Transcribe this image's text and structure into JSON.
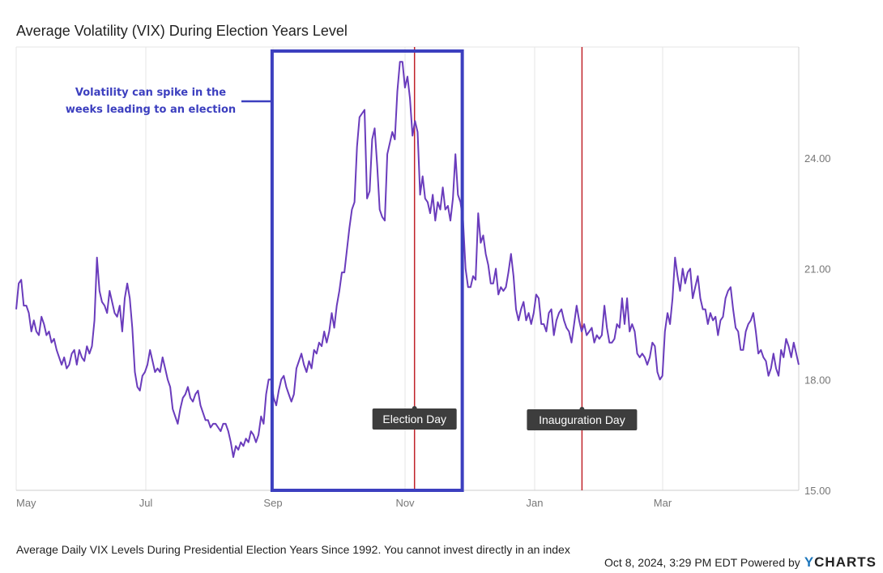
{
  "chart_data": {
    "type": "line",
    "title": "Average Volatility (VIX) During Election Years Level",
    "xlabel": "",
    "ylabel": "",
    "x_ticks": [
      "May",
      "Jul",
      "Sep",
      "Nov",
      "Jan",
      "Mar"
    ],
    "y_ticks": [
      "15.00",
      "18.00",
      "21.00",
      "24.00"
    ],
    "ylim": [
      15,
      27
    ],
    "grid": "vertical",
    "series": [
      {
        "color": "#6a3cbc",
        "values": [
          19.9,
          20.6,
          20.7,
          20.0,
          20.0,
          19.8,
          19.3,
          19.6,
          19.3,
          19.2,
          19.7,
          19.5,
          19.2,
          19.3,
          19.0,
          19.1,
          18.8,
          18.6,
          18.4,
          18.6,
          18.3,
          18.4,
          18.7,
          18.8,
          18.4,
          18.8,
          18.6,
          18.5,
          18.9,
          18.7,
          18.9,
          19.6,
          21.3,
          20.4,
          20.1,
          20.0,
          19.8,
          20.4,
          20.1,
          19.8,
          19.7,
          20.0,
          19.3,
          20.2,
          20.6,
          20.2,
          19.4,
          18.2,
          17.8,
          17.7,
          18.1,
          18.2,
          18.4,
          18.8,
          18.5,
          18.2,
          18.3,
          18.2,
          18.6,
          18.3,
          18.0,
          17.8,
          17.2,
          17.0,
          16.8,
          17.2,
          17.5,
          17.6,
          17.8,
          17.5,
          17.4,
          17.6,
          17.7,
          17.3,
          17.1,
          16.9,
          16.9,
          16.7,
          16.8,
          16.8,
          16.7,
          16.6,
          16.8,
          16.8,
          16.6,
          16.3,
          15.9,
          16.2,
          16.1,
          16.3,
          16.2,
          16.4,
          16.3,
          16.6,
          16.5,
          16.3,
          16.5,
          17.0,
          16.8,
          17.6,
          18.0,
          18.0,
          17.5,
          17.3,
          17.7,
          18.0,
          18.1,
          17.8,
          17.6,
          17.4,
          17.6,
          18.3,
          18.5,
          18.7,
          18.4,
          18.2,
          18.5,
          18.3,
          18.8,
          18.7,
          19.0,
          18.9,
          19.3,
          19.0,
          19.3,
          19.8,
          19.4,
          20.0,
          20.4,
          20.9,
          20.9,
          21.5,
          22.1,
          22.6,
          22.8,
          24.3,
          25.1,
          25.2,
          25.3,
          22.9,
          23.1,
          24.5,
          24.8,
          23.8,
          22.6,
          22.4,
          22.3,
          24.1,
          24.4,
          24.7,
          24.5,
          25.8,
          26.6,
          26.6,
          25.9,
          26.2,
          25.6,
          24.6,
          25.0,
          24.7,
          23.0,
          23.5,
          22.9,
          22.8,
          22.5,
          23.0,
          22.3,
          22.8,
          22.6,
          23.2,
          22.6,
          22.7,
          22.3,
          22.9,
          24.1,
          23.0,
          22.8,
          22.3,
          21.0,
          20.5,
          20.5,
          20.8,
          20.7,
          22.5,
          21.7,
          21.9,
          21.4,
          21.1,
          20.6,
          20.6,
          21.0,
          20.3,
          20.5,
          20.4,
          20.5,
          20.9,
          21.4,
          20.8,
          19.9,
          19.6,
          19.9,
          20.1,
          19.6,
          19.8,
          19.5,
          19.8,
          20.3,
          20.2,
          19.5,
          19.5,
          19.3,
          19.8,
          19.9,
          19.2,
          19.6,
          19.8,
          19.9,
          19.6,
          19.4,
          19.3,
          19.0,
          19.5,
          20.0,
          19.6,
          19.3,
          19.5,
          19.2,
          19.3,
          19.4,
          19.0,
          19.2,
          19.1,
          19.2,
          20.0,
          19.4,
          19.0,
          19.0,
          19.1,
          19.5,
          19.4,
          20.2,
          19.5,
          20.2,
          19.3,
          19.5,
          19.3,
          18.7,
          18.6,
          18.7,
          18.6,
          18.4,
          18.6,
          19.0,
          18.9,
          18.2,
          18.0,
          18.1,
          19.3,
          19.8,
          19.5,
          20.2,
          21.3,
          20.8,
          20.4,
          21.0,
          20.6,
          20.9,
          21.0,
          20.2,
          20.5,
          20.8,
          20.2,
          19.9,
          19.9,
          19.5,
          19.8,
          19.6,
          19.7,
          19.2,
          19.6,
          19.7,
          20.2,
          20.4,
          20.5,
          19.9,
          19.4,
          19.3,
          18.8,
          18.8,
          19.3,
          19.5,
          19.6,
          19.8,
          19.3,
          18.7,
          18.8,
          18.6,
          18.5,
          18.1,
          18.3,
          18.7,
          18.3,
          18.1,
          18.8,
          18.6,
          19.1,
          18.9,
          18.6,
          19.0,
          18.7,
          18.4
        ]
      }
    ],
    "events": [
      {
        "label": "Election Day",
        "x_fraction": 0.509
      },
      {
        "label": "Inauguration Day",
        "x_fraction": 0.723
      }
    ],
    "highlight_box": {
      "x_start_fraction": 0.327,
      "x_end_fraction": 0.57
    },
    "annotation": [
      "Volatility can spike in the",
      "weeks leading to an election"
    ]
  },
  "footnote": "Average Daily VIX Levels During Presidential Election Years Since 1992. You cannot invest directly in an index",
  "credit": "Oct 8, 2024, 3:29 PM EDT Powered by",
  "brand": {
    "y": "Y",
    "rest": "CHARTS"
  },
  "colors": {
    "line": "#6a3cbc",
    "event_line": "#c0222a",
    "box": "#3c3fbf",
    "tag_bg": "#3d3d3d",
    "grid": "#e6e6e6"
  }
}
